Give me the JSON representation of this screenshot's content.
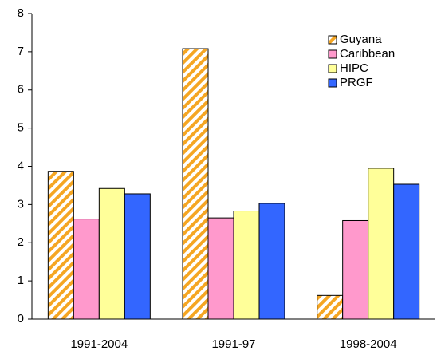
{
  "chart_data": {
    "type": "bar",
    "categories": [
      "1991-2004",
      "1991-97",
      "1998-2004"
    ],
    "series": [
      {
        "name": "Guyana",
        "color": "#f5a623",
        "pattern": "hatch",
        "values": [
          3.87,
          7.08,
          0.62
        ]
      },
      {
        "name": "Caribbean",
        "color": "#ff99cc",
        "values": [
          2.62,
          2.65,
          2.58
        ]
      },
      {
        "name": "HIPC",
        "color": "#ffff99",
        "values": [
          3.42,
          2.83,
          3.95
        ]
      },
      {
        "name": "PRGF",
        "color": "#3366ff",
        "values": [
          3.28,
          3.03,
          3.53
        ]
      }
    ],
    "ylim": [
      0,
      8
    ],
    "yticks": [
      0,
      1,
      2,
      3,
      4,
      5,
      6,
      7,
      8
    ],
    "grid": false,
    "legend": "top-right"
  }
}
